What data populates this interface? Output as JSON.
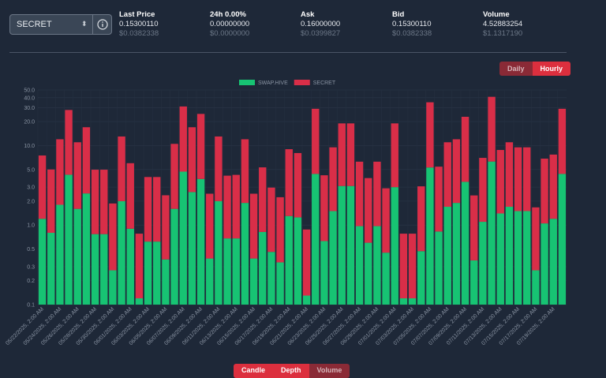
{
  "selector": {
    "value": "SECRET"
  },
  "stats": [
    {
      "label": "Last Price",
      "value": "0.15300110",
      "usd": "$0.0382338"
    },
    {
      "label": "24h 0.00%",
      "value": "0.00000000",
      "usd": "$0.0000000"
    },
    {
      "label": "Ask",
      "value": "0.16000000",
      "usd": "$0.0399827"
    },
    {
      "label": "Bid",
      "value": "0.15300110",
      "usd": "$0.0382338"
    },
    {
      "label": "Volume",
      "value": "4.52883254",
      "usd": "$1.1317190"
    }
  ],
  "range_buttons": [
    "Daily",
    "Hourly"
  ],
  "tabs": [
    "Candle",
    "Depth",
    "Volume"
  ],
  "chart_data": {
    "type": "bar",
    "stacked": true,
    "log_scale": true,
    "grid": true,
    "legend": "top",
    "categories": [
      "05/22/2025, 2:00 AM",
      null,
      "05/24/2025, 2:00 AM",
      null,
      "05/26/2025, 2:00 AM",
      null,
      "05/28/2025, 2:00 AM",
      null,
      "05/30/2025, 2:00 AM",
      null,
      "06/01/2025, 2:00 AM",
      null,
      "06/03/2025, 2:00 AM",
      null,
      "06/05/2025, 2:00 AM",
      null,
      "06/07/2025, 2:00 AM",
      null,
      "06/09/2025, 2:00 AM",
      null,
      "06/11/2025, 2:00 AM",
      null,
      "06/13/2025, 2:00 AM",
      null,
      "06/15/2025, 2:00 AM",
      null,
      "06/17/2025, 2:00 AM",
      null,
      "06/19/2025, 2:00 AM",
      null,
      "06/21/2025, 2:00 AM",
      null,
      "06/23/2025, 2:00 AM",
      null,
      "06/25/2025, 2:00 AM",
      null,
      "06/27/2025, 2:00 AM",
      null,
      "06/29/2025, 2:00 AM",
      null,
      "07/01/2025, 2:00 AM",
      null,
      "07/03/2025, 2:00 AM",
      null,
      "07/05/2025, 2:00 AM",
      null,
      "07/07/2025, 2:00 AM",
      null,
      "07/09/2025, 2:00 AM",
      null,
      "07/11/2025, 2:00 AM",
      null,
      "07/13/2025, 2:00 AM",
      null,
      "07/15/2025, 2:00 AM",
      null,
      "07/17/2025, 2:00 AM",
      null,
      "07/19/2025, 2:00 AM",
      null
    ],
    "series": [
      {
        "name": "SWAP.HIVE",
        "color": "#17c373",
        "values": [
          1.2,
          0.8,
          1.8,
          4.3,
          1.6,
          2.5,
          0.77,
          0.77,
          0.27,
          2.0,
          0.9,
          0.12,
          0.62,
          0.62,
          0.37,
          1.6,
          4.7,
          2.6,
          3.8,
          0.38,
          2.0,
          0.68,
          0.68,
          1.9,
          0.38,
          0.82,
          0.46,
          0.34,
          1.3,
          1.25,
          0.13,
          4.4,
          0.63,
          1.5,
          3.1,
          3.1,
          0.97,
          0.6,
          0.97,
          0.45,
          3.0,
          0.12,
          0.12,
          0.47,
          5.3,
          0.83,
          1.7,
          1.9,
          3.5,
          0.36,
          1.1,
          6.3,
          1.4,
          1.7,
          1.5,
          1.5,
          0.27,
          1.05,
          1.2,
          4.4
        ]
      },
      {
        "name": "SECRET",
        "color": "#d92e48",
        "values": [
          6.3,
          4.2,
          10.2,
          23.7,
          9.4,
          14.5,
          4.2,
          4.2,
          1.6,
          11,
          5.1,
          0.66,
          3.4,
          3.4,
          2.0,
          8.9,
          26.3,
          14.4,
          21.2,
          2.1,
          11,
          3.5,
          3.6,
          10.1,
          2.1,
          4.5,
          2.5,
          1.9,
          7.7,
          6.8,
          0.75,
          24.6,
          3.6,
          8,
          15.9,
          15.9,
          5.3,
          3.3,
          5.3,
          2.45,
          16,
          0.66,
          0.66,
          2.6,
          29.7,
          4.6,
          9.3,
          10.1,
          19.5,
          2.0,
          5.9,
          34.7,
          7.4,
          9.3,
          8,
          8,
          1.4,
          5.8,
          6.5,
          24.6
        ]
      }
    ],
    "ylim": [
      0.1,
      50
    ],
    "yticks": [
      0.1,
      0.2,
      0.3,
      0.5,
      {
        "value": 1,
        "label": "1.0"
      },
      {
        "value": 2,
        "label": "2.0"
      },
      {
        "value": 3,
        "label": "3.0"
      },
      {
        "value": 5,
        "label": "5.0"
      },
      {
        "value": 10,
        "label": "10.0"
      },
      {
        "value": 20,
        "label": "20.0"
      },
      {
        "value": 30,
        "label": "30.0"
      },
      {
        "value": 40,
        "label": "40.0"
      },
      {
        "value": 50,
        "label": "50.0"
      }
    ]
  }
}
